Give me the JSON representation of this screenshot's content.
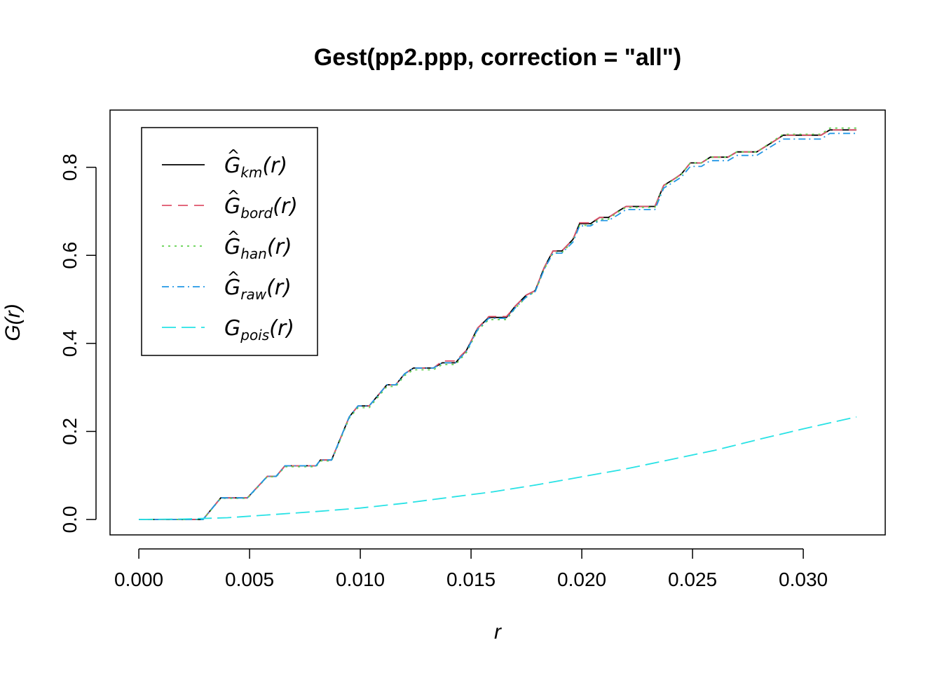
{
  "chart_data": {
    "type": "line",
    "title": "Gest(pp2.ppp, correction = \"all\")",
    "xlabel": "r",
    "ylabel": "G(r)",
    "xlim": [
      -0.0013,
      0.0337
    ],
    "ylim": [
      -0.035,
      0.93
    ],
    "x_ticks": [
      "0.000",
      "0.005",
      "0.010",
      "0.015",
      "0.020",
      "0.025",
      "0.030"
    ],
    "x_tick_values": [
      0,
      0.005,
      0.01,
      0.015,
      0.02,
      0.025,
      0.03
    ],
    "y_ticks": [
      "0.0",
      "0.2",
      "0.4",
      "0.6",
      "0.8"
    ],
    "y_tick_values": [
      0,
      0.2,
      0.4,
      0.6,
      0.8
    ],
    "grid": false,
    "legend_position": "top-left",
    "series": [
      {
        "name_base": "G",
        "name_hat": "^",
        "name_sub": "km",
        "name_arg": "(r)",
        "color": "#000000",
        "dash": "solid",
        "points": [
          [
            0,
            0
          ],
          [
            0.0029,
            0
          ],
          [
            0.0037,
            0.049
          ],
          [
            0.0049,
            0.049
          ],
          [
            0.0058,
            0.098
          ],
          [
            0.0062,
            0.098
          ],
          [
            0.0066,
            0.122
          ],
          [
            0.008,
            0.122
          ],
          [
            0.0082,
            0.135
          ],
          [
            0.0087,
            0.135
          ],
          [
            0.0095,
            0.233
          ],
          [
            0.0099,
            0.258
          ],
          [
            0.0104,
            0.258
          ],
          [
            0.0112,
            0.306
          ],
          [
            0.0116,
            0.306
          ],
          [
            0.012,
            0.331
          ],
          [
            0.0124,
            0.344
          ],
          [
            0.0133,
            0.344
          ],
          [
            0.0137,
            0.356
          ],
          [
            0.0143,
            0.356
          ],
          [
            0.0148,
            0.385
          ],
          [
            0.0153,
            0.435
          ],
          [
            0.0158,
            0.459
          ],
          [
            0.0166,
            0.459
          ],
          [
            0.017,
            0.485
          ],
          [
            0.0175,
            0.51
          ],
          [
            0.0179,
            0.52
          ],
          [
            0.0183,
            0.572
          ],
          [
            0.0187,
            0.61
          ],
          [
            0.0191,
            0.61
          ],
          [
            0.0196,
            0.636
          ],
          [
            0.0199,
            0.672
          ],
          [
            0.0204,
            0.672
          ],
          [
            0.0208,
            0.686
          ],
          [
            0.0212,
            0.686
          ],
          [
            0.0216,
            0.699
          ],
          [
            0.022,
            0.711
          ],
          [
            0.0233,
            0.711
          ],
          [
            0.0237,
            0.759
          ],
          [
            0.0241,
            0.771
          ],
          [
            0.0245,
            0.785
          ],
          [
            0.0249,
            0.81
          ],
          [
            0.0254,
            0.81
          ],
          [
            0.0258,
            0.823
          ],
          [
            0.0266,
            0.823
          ],
          [
            0.027,
            0.835
          ],
          [
            0.0279,
            0.835
          ],
          [
            0.0287,
            0.86
          ],
          [
            0.0291,
            0.873
          ],
          [
            0.0308,
            0.873
          ],
          [
            0.0312,
            0.885
          ],
          [
            0.0324,
            0.885
          ]
        ]
      },
      {
        "name_base": "G",
        "name_hat": "^",
        "name_sub": "bord",
        "name_arg": "(r)",
        "color": "#DF536B",
        "dash": "14,9",
        "points": [
          [
            0,
            0
          ],
          [
            0.0029,
            0
          ],
          [
            0.0037,
            0.049
          ],
          [
            0.0049,
            0.049
          ],
          [
            0.0058,
            0.098
          ],
          [
            0.0062,
            0.098
          ],
          [
            0.0066,
            0.122
          ],
          [
            0.008,
            0.122
          ],
          [
            0.0082,
            0.135
          ],
          [
            0.0087,
            0.135
          ],
          [
            0.0095,
            0.233
          ],
          [
            0.0099,
            0.258
          ],
          [
            0.0104,
            0.258
          ],
          [
            0.0112,
            0.306
          ],
          [
            0.0116,
            0.306
          ],
          [
            0.012,
            0.331
          ],
          [
            0.0124,
            0.344
          ],
          [
            0.0133,
            0.344
          ],
          [
            0.0137,
            0.36
          ],
          [
            0.0143,
            0.36
          ],
          [
            0.0148,
            0.385
          ],
          [
            0.0153,
            0.435
          ],
          [
            0.0158,
            0.461
          ],
          [
            0.0166,
            0.461
          ],
          [
            0.017,
            0.485
          ],
          [
            0.0175,
            0.51
          ],
          [
            0.0179,
            0.52
          ],
          [
            0.0183,
            0.572
          ],
          [
            0.0187,
            0.61
          ],
          [
            0.0191,
            0.61
          ],
          [
            0.0196,
            0.636
          ],
          [
            0.0199,
            0.674
          ],
          [
            0.0204,
            0.674
          ],
          [
            0.0208,
            0.686
          ],
          [
            0.0212,
            0.686
          ],
          [
            0.0216,
            0.699
          ],
          [
            0.022,
            0.711
          ],
          [
            0.0233,
            0.711
          ],
          [
            0.0237,
            0.759
          ],
          [
            0.0241,
            0.771
          ],
          [
            0.0245,
            0.785
          ],
          [
            0.0249,
            0.81
          ],
          [
            0.0254,
            0.81
          ],
          [
            0.0258,
            0.823
          ],
          [
            0.0266,
            0.823
          ],
          [
            0.027,
            0.835
          ],
          [
            0.0279,
            0.835
          ],
          [
            0.0287,
            0.86
          ],
          [
            0.0291,
            0.873
          ],
          [
            0.0308,
            0.873
          ],
          [
            0.0312,
            0.885
          ],
          [
            0.0324,
            0.885
          ]
        ]
      },
      {
        "name_base": "G",
        "name_hat": "^",
        "name_sub": "han",
        "name_arg": "(r)",
        "color": "#61D04F",
        "dash": "3,6",
        "points": [
          [
            0,
            0
          ],
          [
            0.0029,
            0
          ],
          [
            0.0037,
            0.048
          ],
          [
            0.0049,
            0.048
          ],
          [
            0.0058,
            0.097
          ],
          [
            0.0062,
            0.097
          ],
          [
            0.0066,
            0.12
          ],
          [
            0.008,
            0.12
          ],
          [
            0.0082,
            0.133
          ],
          [
            0.0087,
            0.133
          ],
          [
            0.0095,
            0.23
          ],
          [
            0.0099,
            0.254
          ],
          [
            0.0104,
            0.254
          ],
          [
            0.0112,
            0.302
          ],
          [
            0.0116,
            0.302
          ],
          [
            0.012,
            0.327
          ],
          [
            0.0124,
            0.34
          ],
          [
            0.0133,
            0.34
          ],
          [
            0.0137,
            0.352
          ],
          [
            0.0143,
            0.352
          ],
          [
            0.0148,
            0.38
          ],
          [
            0.0153,
            0.43
          ],
          [
            0.0158,
            0.454
          ],
          [
            0.0166,
            0.454
          ],
          [
            0.017,
            0.48
          ],
          [
            0.0175,
            0.505
          ],
          [
            0.0179,
            0.518
          ],
          [
            0.0183,
            0.568
          ],
          [
            0.0187,
            0.606
          ],
          [
            0.0191,
            0.606
          ],
          [
            0.0196,
            0.632
          ],
          [
            0.0199,
            0.668
          ],
          [
            0.0204,
            0.668
          ],
          [
            0.0208,
            0.682
          ],
          [
            0.0212,
            0.682
          ],
          [
            0.0216,
            0.697
          ],
          [
            0.022,
            0.709
          ],
          [
            0.0233,
            0.709
          ],
          [
            0.0237,
            0.757
          ],
          [
            0.0241,
            0.77
          ],
          [
            0.0245,
            0.784
          ],
          [
            0.0249,
            0.81
          ],
          [
            0.0254,
            0.81
          ],
          [
            0.0258,
            0.823
          ],
          [
            0.0266,
            0.823
          ],
          [
            0.027,
            0.835
          ],
          [
            0.0279,
            0.835
          ],
          [
            0.0287,
            0.862
          ],
          [
            0.0291,
            0.875
          ],
          [
            0.0308,
            0.875
          ],
          [
            0.0312,
            0.889
          ],
          [
            0.0324,
            0.889
          ]
        ]
      },
      {
        "name_base": "G",
        "name_hat": "^",
        "name_sub": "raw",
        "name_arg": "(r)",
        "color": "#2297E6",
        "dash": "10,5,2,5",
        "points": [
          [
            0,
            0
          ],
          [
            0.0029,
            0
          ],
          [
            0.0037,
            0.049
          ],
          [
            0.0049,
            0.049
          ],
          [
            0.0058,
            0.098
          ],
          [
            0.0062,
            0.098
          ],
          [
            0.0066,
            0.122
          ],
          [
            0.008,
            0.122
          ],
          [
            0.0082,
            0.135
          ],
          [
            0.0087,
            0.135
          ],
          [
            0.0095,
            0.233
          ],
          [
            0.0099,
            0.258
          ],
          [
            0.0104,
            0.258
          ],
          [
            0.0112,
            0.306
          ],
          [
            0.0116,
            0.306
          ],
          [
            0.012,
            0.331
          ],
          [
            0.0124,
            0.344
          ],
          [
            0.0133,
            0.344
          ],
          [
            0.0137,
            0.356
          ],
          [
            0.0143,
            0.356
          ],
          [
            0.0148,
            0.383
          ],
          [
            0.0153,
            0.432
          ],
          [
            0.0158,
            0.457
          ],
          [
            0.0166,
            0.457
          ],
          [
            0.017,
            0.481
          ],
          [
            0.0175,
            0.506
          ],
          [
            0.0179,
            0.518
          ],
          [
            0.0183,
            0.568
          ],
          [
            0.0187,
            0.605
          ],
          [
            0.0191,
            0.605
          ],
          [
            0.0196,
            0.63
          ],
          [
            0.0199,
            0.667
          ],
          [
            0.0204,
            0.667
          ],
          [
            0.0208,
            0.679
          ],
          [
            0.0212,
            0.679
          ],
          [
            0.0216,
            0.691
          ],
          [
            0.022,
            0.704
          ],
          [
            0.0233,
            0.704
          ],
          [
            0.0237,
            0.753
          ],
          [
            0.0241,
            0.765
          ],
          [
            0.0245,
            0.778
          ],
          [
            0.0249,
            0.802
          ],
          [
            0.0254,
            0.802
          ],
          [
            0.0258,
            0.815
          ],
          [
            0.0266,
            0.815
          ],
          [
            0.027,
            0.827
          ],
          [
            0.0279,
            0.827
          ],
          [
            0.0287,
            0.852
          ],
          [
            0.0291,
            0.864
          ],
          [
            0.0308,
            0.864
          ],
          [
            0.0312,
            0.877
          ],
          [
            0.0324,
            0.877
          ]
        ]
      },
      {
        "name_base": "G",
        "name_hat": "",
        "name_sub": "pois",
        "name_arg": "(r)",
        "color": "#28E2E5",
        "dash": "20,8",
        "points": [
          [
            0,
            0
          ],
          [
            0.002,
            0.001
          ],
          [
            0.004,
            0.004
          ],
          [
            0.006,
            0.011
          ],
          [
            0.008,
            0.018
          ],
          [
            0.01,
            0.026
          ],
          [
            0.012,
            0.037
          ],
          [
            0.014,
            0.05
          ],
          [
            0.016,
            0.063
          ],
          [
            0.018,
            0.079
          ],
          [
            0.02,
            0.097
          ],
          [
            0.022,
            0.115
          ],
          [
            0.024,
            0.136
          ],
          [
            0.026,
            0.157
          ],
          [
            0.028,
            0.182
          ],
          [
            0.03,
            0.206
          ],
          [
            0.0324,
            0.233
          ]
        ]
      }
    ]
  }
}
